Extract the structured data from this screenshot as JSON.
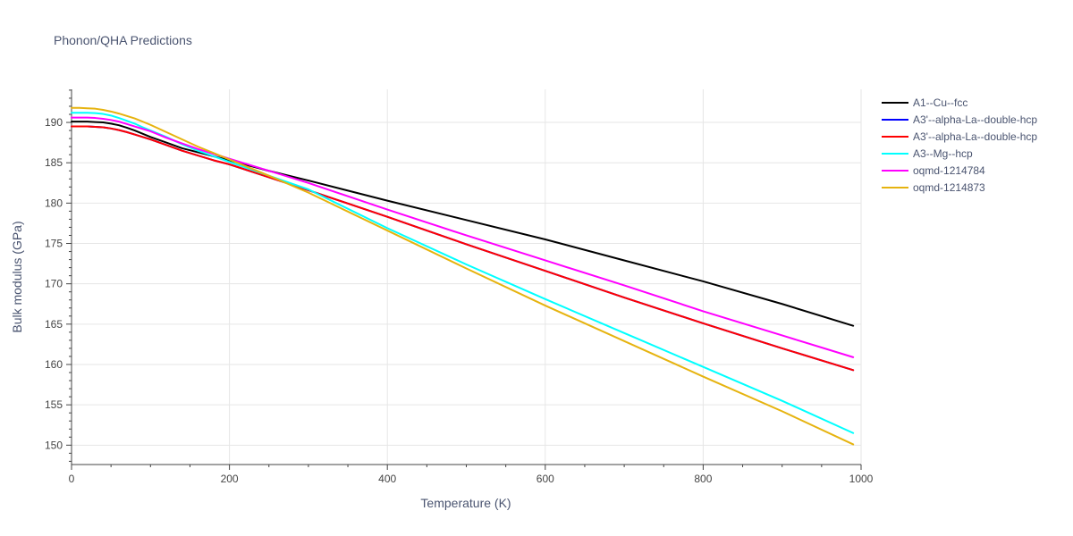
{
  "chart_data": {
    "type": "line",
    "title": "Phonon/QHA Predictions",
    "xlabel": "Temperature (K)",
    "ylabel": "Bulk modulus (GPa)",
    "xlim": [
      0,
      1000
    ],
    "ylim": [
      147.6,
      194.1
    ],
    "xticks": [
      0,
      200,
      400,
      600,
      800,
      1000
    ],
    "yticks": [
      150,
      155,
      160,
      165,
      170,
      175,
      180,
      185,
      190
    ],
    "grid": true,
    "legend_position": "top-right",
    "series": [
      {
        "name": "A1--Cu--fcc",
        "color": "#000000",
        "x": [
          0,
          10,
          20,
          30,
          40,
          50,
          60,
          70,
          80,
          90,
          100,
          120,
          140,
          160,
          180,
          200,
          250,
          300,
          400,
          500,
          600,
          700,
          800,
          900,
          990
        ],
        "y": [
          190.1,
          190.1,
          190.1,
          190.05,
          190.0,
          189.85,
          189.65,
          189.35,
          189.0,
          188.6,
          188.2,
          187.5,
          186.8,
          186.3,
          185.8,
          185.3,
          184.0,
          182.8,
          180.3,
          177.9,
          175.5,
          172.9,
          170.3,
          167.5,
          164.8
        ]
      },
      {
        "name": "A3'--alpha-La--double-hcp",
        "color": "#0000ff",
        "x": [
          0,
          10,
          20,
          30,
          40,
          50,
          60,
          70,
          80,
          90,
          100,
          120,
          140,
          160,
          180,
          200,
          250,
          300,
          400,
          500,
          600,
          700,
          800,
          900,
          990
        ],
        "y": [
          189.5,
          189.5,
          189.5,
          189.45,
          189.4,
          189.25,
          189.05,
          188.8,
          188.5,
          188.2,
          187.9,
          187.2,
          186.5,
          185.9,
          185.3,
          184.8,
          183.2,
          181.6,
          178.3,
          174.9,
          171.6,
          168.3,
          165.1,
          162.0,
          159.3
        ]
      },
      {
        "name": "A3'--alpha-La--double-hcp",
        "color": "#ff0000",
        "x": [
          0,
          10,
          20,
          30,
          40,
          50,
          60,
          70,
          80,
          90,
          100,
          120,
          140,
          160,
          180,
          200,
          250,
          300,
          400,
          500,
          600,
          700,
          800,
          900,
          990
        ],
        "y": [
          189.5,
          189.5,
          189.5,
          189.45,
          189.4,
          189.25,
          189.05,
          188.8,
          188.5,
          188.2,
          187.9,
          187.2,
          186.5,
          185.9,
          185.3,
          184.8,
          183.2,
          181.6,
          178.3,
          174.9,
          171.6,
          168.3,
          165.1,
          162.0,
          159.3
        ]
      },
      {
        "name": "A3--Mg--hcp",
        "color": "#00ffff",
        "x": [
          0,
          10,
          20,
          30,
          40,
          50,
          60,
          70,
          80,
          90,
          100,
          120,
          140,
          160,
          180,
          200,
          250,
          300,
          400,
          500,
          600,
          700,
          800,
          900,
          990
        ],
        "y": [
          191.2,
          191.2,
          191.2,
          191.15,
          191.05,
          190.85,
          190.55,
          190.2,
          189.85,
          189.4,
          189.0,
          188.2,
          187.3,
          186.5,
          185.8,
          185.1,
          183.4,
          181.7,
          176.9,
          172.4,
          168.1,
          163.9,
          159.7,
          155.5,
          151.5
        ]
      },
      {
        "name": "oqmd-1214784",
        "color": "#ff00ff",
        "x": [
          0,
          10,
          20,
          30,
          40,
          50,
          60,
          70,
          80,
          90,
          100,
          120,
          140,
          160,
          180,
          200,
          250,
          300,
          400,
          500,
          600,
          700,
          800,
          900,
          990
        ],
        "y": [
          190.6,
          190.6,
          190.6,
          190.55,
          190.45,
          190.3,
          190.1,
          189.8,
          189.5,
          189.2,
          188.9,
          188.1,
          187.4,
          186.7,
          186.1,
          185.5,
          184.0,
          182.5,
          179.2,
          176.0,
          172.9,
          169.8,
          166.6,
          163.6,
          160.9
        ]
      },
      {
        "name": "oqmd-1214873",
        "color": "#e6b30f",
        "x": [
          0,
          10,
          20,
          30,
          40,
          50,
          60,
          70,
          80,
          90,
          100,
          120,
          140,
          160,
          180,
          200,
          250,
          300,
          400,
          500,
          600,
          700,
          800,
          900,
          990
        ],
        "y": [
          191.8,
          191.8,
          191.75,
          191.7,
          191.55,
          191.35,
          191.1,
          190.8,
          190.5,
          190.1,
          189.7,
          188.8,
          187.9,
          187.0,
          186.2,
          185.4,
          183.4,
          181.3,
          176.6,
          171.9,
          167.3,
          162.9,
          158.5,
          154.2,
          150.1
        ]
      }
    ]
  }
}
